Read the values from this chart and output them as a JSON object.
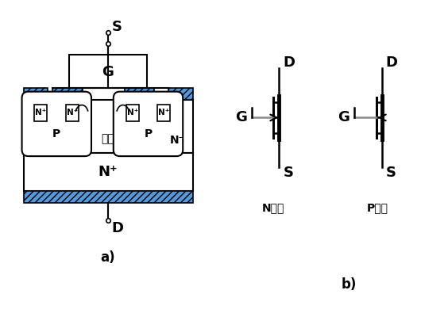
{
  "bg_color": "#ffffff",
  "line_color": "#000000",
  "blue_fill": "#5599dd",
  "fig_w": 5.3,
  "fig_h": 4.24,
  "dpi": 100,
  "label_channel": "溝道",
  "label_G": "G",
  "label_S": "S",
  "label_D": "D",
  "label_N_channel": "N溝道",
  "label_P_channel": "P溝道",
  "label_a": "a)",
  "label_b": "b)"
}
